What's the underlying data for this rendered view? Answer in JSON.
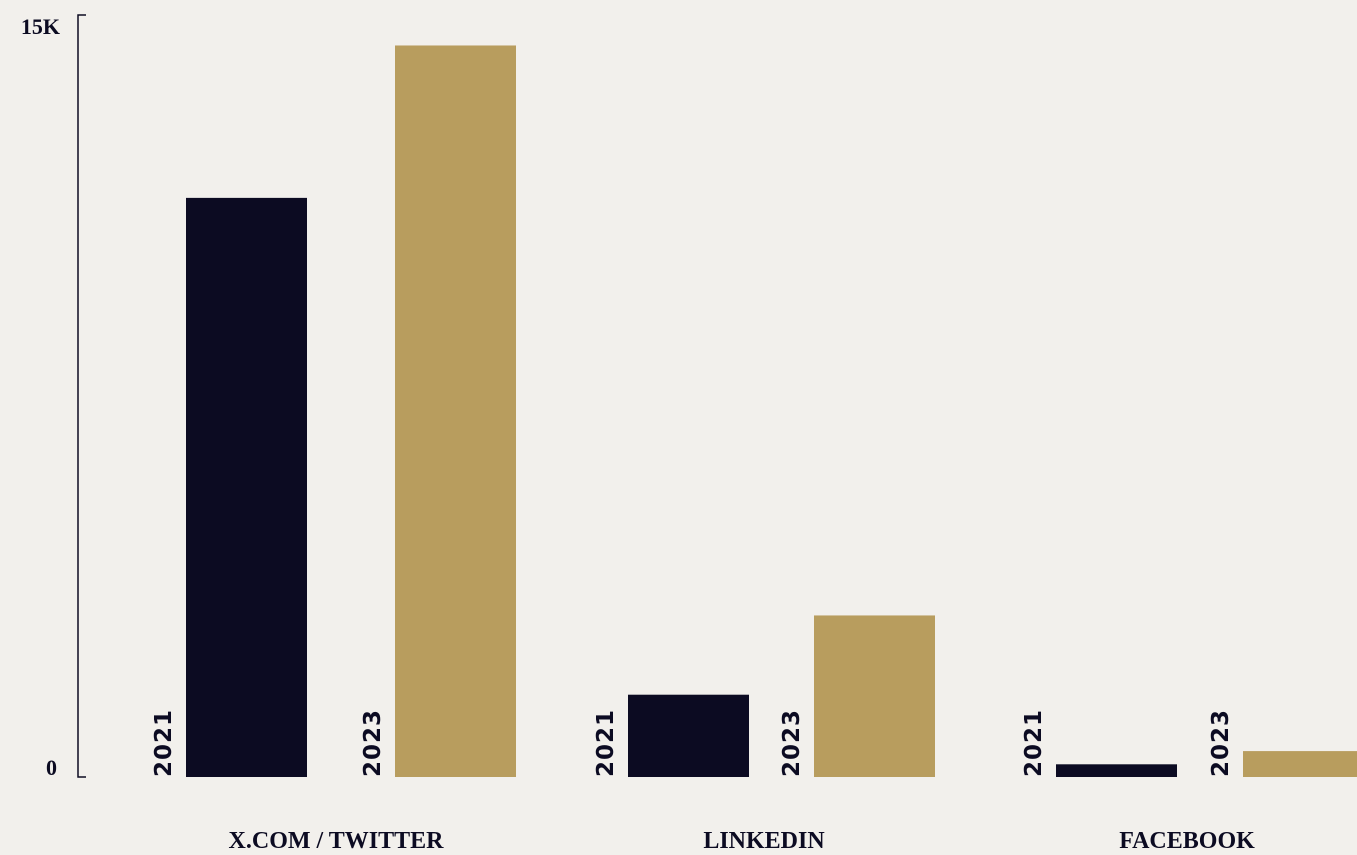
{
  "chart_data": {
    "type": "bar",
    "categories": [
      "X.COM / TWITTER",
      "LINKEDIN",
      "FACEBOOK"
    ],
    "series": [
      {
        "name": "2021",
        "values": [
          11400,
          1620,
          250
        ],
        "color": "#0c0b22"
      },
      {
        "name": "2023",
        "values": [
          14400,
          3180,
          510
        ],
        "color": "#b89d5e"
      }
    ],
    "ylim": [
      0,
      15000
    ],
    "y_ticks": [
      {
        "value": 0,
        "label": "0"
      },
      {
        "value": 15000,
        "label": "15K"
      }
    ],
    "title": "",
    "xlabel": "",
    "ylabel": "",
    "grid": false,
    "legend": "none",
    "axis_color": "#0c0b22",
    "background": "#f2f0ec"
  }
}
